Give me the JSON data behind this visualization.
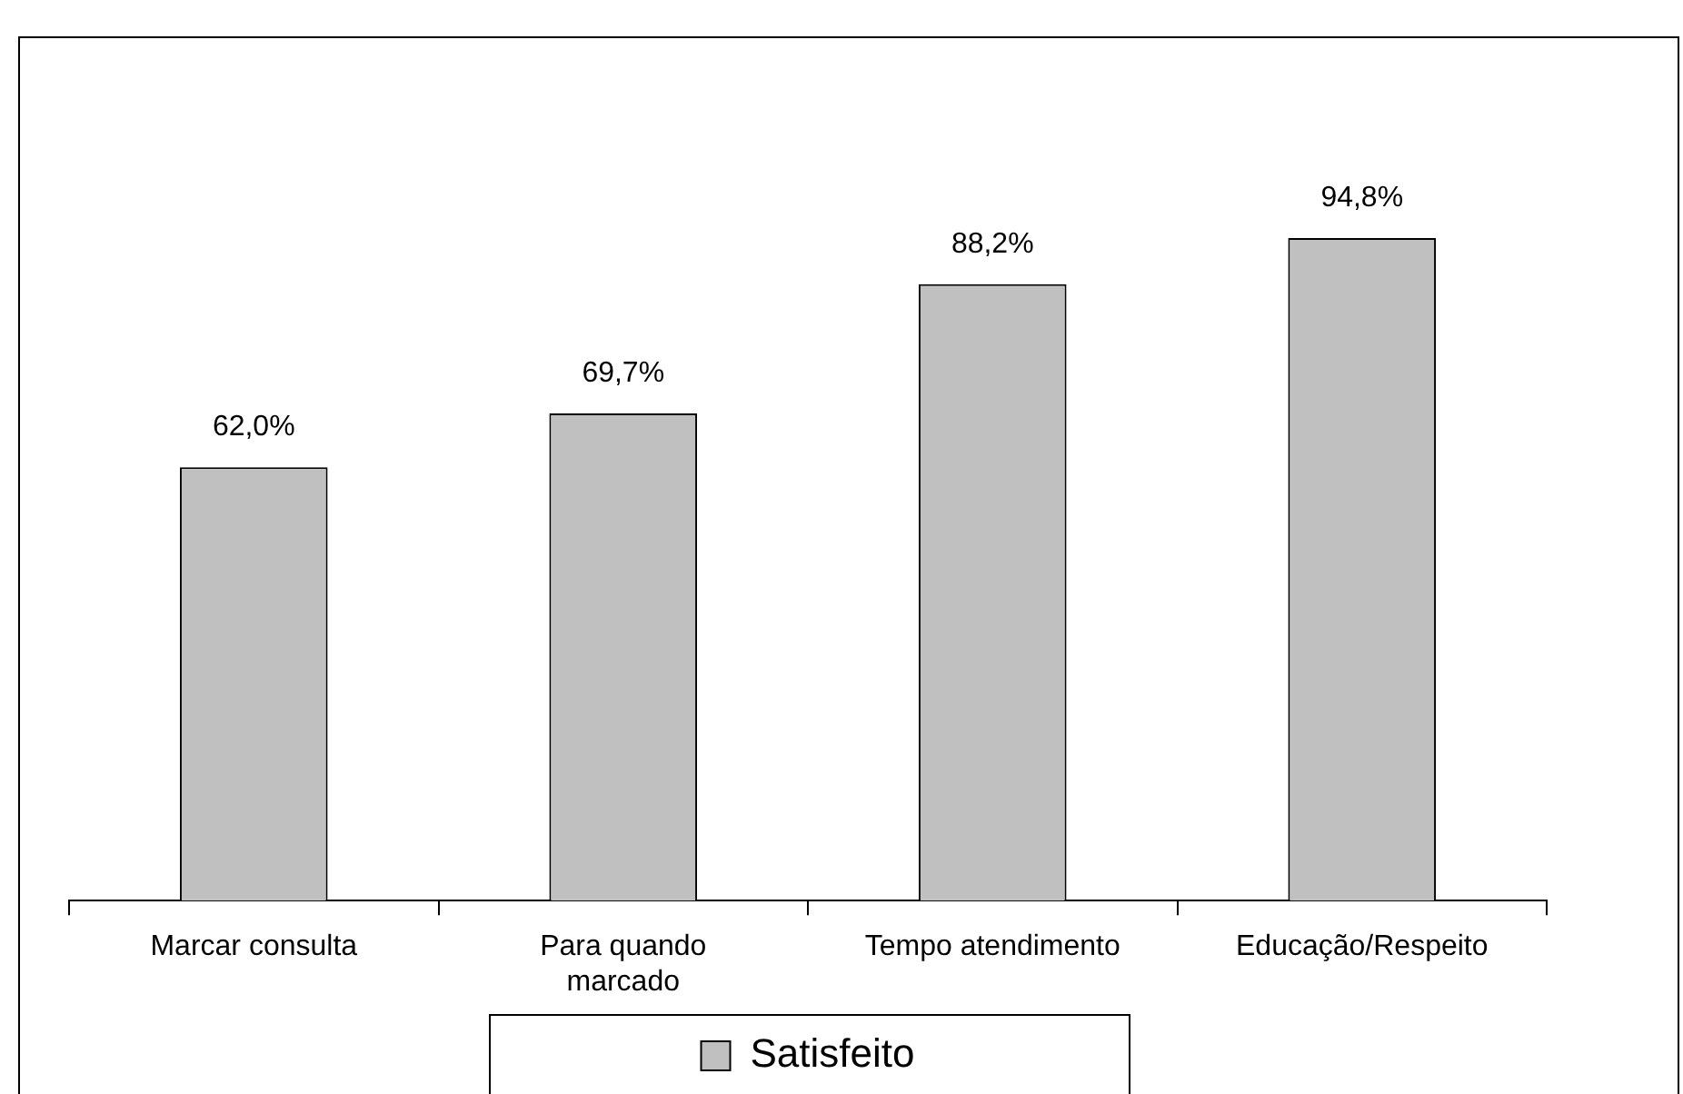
{
  "chart_data": {
    "type": "bar",
    "categories": [
      "Marcar consulta",
      [
        "Para quando",
        "marcado"
      ],
      "Tempo atendimento",
      "Educação/Respeito"
    ],
    "series": [
      {
        "name": "Satisfeito",
        "color": "#c0c0c0",
        "values": [
          62.0,
          69.7,
          88.2,
          94.8
        ],
        "value_labels": [
          "62,0%",
          "69,7%",
          "88,2%",
          "94,8%"
        ]
      }
    ],
    "legend": "bottom"
  }
}
